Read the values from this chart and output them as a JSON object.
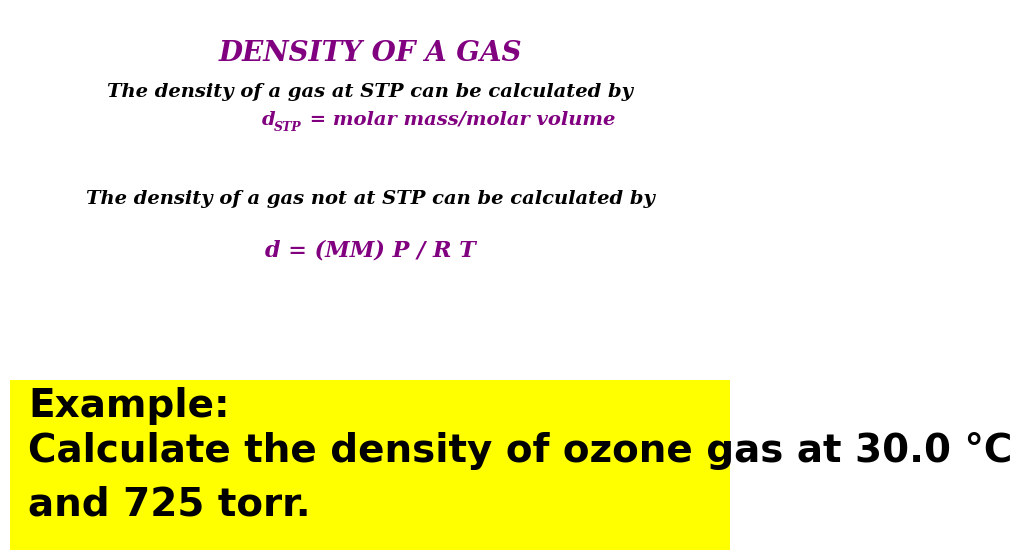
{
  "title": "DENSITY OF A GAS",
  "title_color": "#800080",
  "title_fontsize": 20,
  "line1": "The density of a gas at STP can be calculated by",
  "line1_color": "#000000",
  "line1_fontsize": 14,
  "line2_d": "d",
  "line2_sub": "STP",
  "line2_rest": " = molar mass/molar volume",
  "line2_color": "#800080",
  "line2_fontsize": 14,
  "line2_sub_fontsize": 9,
  "line3": "The density of a gas not at STP can be calculated by",
  "line3_color": "#000000",
  "line3_fontsize": 14,
  "line4": "d = (MM) P / R T",
  "line4_color": "#800080",
  "line4_fontsize": 16,
  "example_line1": "Example:",
  "example_line2": "Calculate the density of ozone gas at 30.0 °C",
  "example_line3": "and 725 torr.",
  "example_color": "#000000",
  "example_fontsize": 28,
  "example_bg_color": "#ffff00",
  "bg_color": "#ffffff"
}
